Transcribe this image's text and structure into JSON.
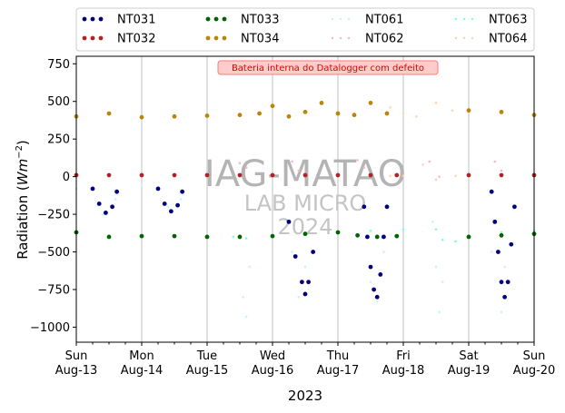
{
  "chart_data": {
    "type": "scatter",
    "xlabel": "2023",
    "ylabel": "Radiation",
    "ylabel_unit_base": "Wm",
    "ylabel_unit_exp": "−2",
    "xlim": [
      0,
      7
    ],
    "ylim": [
      -1100,
      800
    ],
    "grid": "vertical",
    "legend_placement": "top",
    "x_ticks": [
      {
        "x": 0,
        "day": "Sun",
        "date": "Aug-13"
      },
      {
        "x": 1,
        "day": "Mon",
        "date": "Aug-14"
      },
      {
        "x": 2,
        "day": "Tue",
        "date": "Aug-15"
      },
      {
        "x": 3,
        "day": "Wed",
        "date": "Aug-16"
      },
      {
        "x": 4,
        "day": "Thu",
        "date": "Aug-17"
      },
      {
        "x": 5,
        "day": "Fri",
        "date": "Aug-18"
      },
      {
        "x": 6,
        "day": "Sat",
        "date": "Aug-19"
      },
      {
        "x": 7,
        "day": "Sun",
        "date": "Aug-20"
      }
    ],
    "y_ticks": [
      {
        "v": 750,
        "label": "750"
      },
      {
        "v": 500,
        "label": "500"
      },
      {
        "v": 250,
        "label": "250"
      },
      {
        "v": 0,
        "label": "0"
      },
      {
        "v": -250,
        "label": "−250"
      },
      {
        "v": -500,
        "label": "−500"
      },
      {
        "v": -750,
        "label": "−750"
      },
      {
        "v": -1000,
        "label": "−1000"
      }
    ],
    "annotation": "Bateria interna do Datalogger com defeito",
    "watermark": [
      "IAG-MATAO",
      "LAB MICRO",
      "2024"
    ],
    "series": [
      {
        "name": "NT031",
        "color": "#00007f",
        "style": "dot",
        "points": [
          [
            0.25,
            -80
          ],
          [
            0.35,
            -180
          ],
          [
            0.45,
            -240
          ],
          [
            0.55,
            -200
          ],
          [
            0.62,
            -100
          ],
          [
            1.25,
            -80
          ],
          [
            1.35,
            -180
          ],
          [
            1.45,
            -230
          ],
          [
            1.55,
            -190
          ],
          [
            1.62,
            -100
          ],
          [
            3.25,
            -300
          ],
          [
            3.35,
            -530
          ],
          [
            3.45,
            -700
          ],
          [
            3.5,
            -780
          ],
          [
            3.55,
            -700
          ],
          [
            3.62,
            -500
          ],
          [
            4.4,
            -200
          ],
          [
            4.45,
            -400
          ],
          [
            4.5,
            -600
          ],
          [
            4.55,
            -750
          ],
          [
            4.6,
            -800
          ],
          [
            4.65,
            -650
          ],
          [
            4.7,
            -400
          ],
          [
            4.75,
            -200
          ],
          [
            6.35,
            -100
          ],
          [
            6.4,
            -300
          ],
          [
            6.45,
            -500
          ],
          [
            6.5,
            -700
          ],
          [
            6.55,
            -800
          ],
          [
            6.6,
            -700
          ],
          [
            6.65,
            -450
          ],
          [
            6.7,
            -200
          ]
        ]
      },
      {
        "name": "NT032",
        "color": "#b22222",
        "style": "dot",
        "points": [
          [
            0,
            10
          ],
          [
            0.5,
            10
          ],
          [
            1,
            10
          ],
          [
            1.5,
            10
          ],
          [
            2,
            10
          ],
          [
            2.5,
            10
          ],
          [
            3,
            10
          ],
          [
            3.5,
            10
          ],
          [
            4,
            10
          ],
          [
            4.5,
            10
          ],
          [
            4.9,
            10
          ],
          [
            6,
            10
          ],
          [
            6.5,
            10
          ],
          [
            7,
            10
          ]
        ]
      },
      {
        "name": "NT033",
        "color": "#006400",
        "style": "dot",
        "points": [
          [
            0,
            -370
          ],
          [
            0.5,
            -400
          ],
          [
            1,
            -395
          ],
          [
            1.5,
            -395
          ],
          [
            2,
            -400
          ],
          [
            2.5,
            -400
          ],
          [
            3,
            -395
          ],
          [
            3.5,
            -380
          ],
          [
            4,
            -370
          ],
          [
            4.3,
            -390
          ],
          [
            4.6,
            -400
          ],
          [
            4.9,
            -395
          ],
          [
            6,
            -400
          ],
          [
            6.5,
            -390
          ],
          [
            7,
            -380
          ]
        ]
      },
      {
        "name": "NT034",
        "color": "#b8860b",
        "style": "dot",
        "points": [
          [
            0,
            400
          ],
          [
            0.5,
            420
          ],
          [
            1,
            395
          ],
          [
            1.5,
            400
          ],
          [
            2,
            405
          ],
          [
            2.5,
            410
          ],
          [
            2.8,
            420
          ],
          [
            3,
            470
          ],
          [
            3.25,
            400
          ],
          [
            3.5,
            430
          ],
          [
            3.75,
            490
          ],
          [
            4,
            420
          ],
          [
            4.25,
            410
          ],
          [
            4.5,
            490
          ],
          [
            4.75,
            420
          ],
          [
            6,
            440
          ],
          [
            6.5,
            430
          ],
          [
            7,
            410
          ]
        ]
      },
      {
        "name": "NT061",
        "color": "#c4f4ff",
        "style": "dotted",
        "points": [
          [
            0,
            -80
          ],
          [
            0.4,
            -250
          ],
          [
            0.6,
            -150
          ],
          [
            1,
            -60
          ],
          [
            1.4,
            -200
          ],
          [
            1.6,
            -150
          ],
          [
            2.5,
            -400
          ],
          [
            2.55,
            -800
          ],
          [
            2.6,
            -930
          ],
          [
            2.65,
            -600
          ],
          [
            3.3,
            -500
          ],
          [
            3.4,
            -800
          ],
          [
            3.5,
            -600
          ],
          [
            4.5,
            -700
          ],
          [
            4.6,
            -830
          ],
          [
            4.7,
            -500
          ],
          [
            5.45,
            -300
          ],
          [
            5.5,
            -600
          ],
          [
            5.55,
            -900
          ],
          [
            5.6,
            -700
          ],
          [
            6.35,
            -500
          ],
          [
            6.5,
            -900
          ],
          [
            6.55,
            -600
          ]
        ]
      },
      {
        "name": "NT062",
        "color": "#ffb6c1",
        "style": "dotted",
        "points": [
          [
            2.5,
            90
          ],
          [
            2.6,
            60
          ],
          [
            3.3,
            100
          ],
          [
            3.4,
            40
          ],
          [
            4.3,
            110
          ],
          [
            4.4,
            60
          ],
          [
            5.4,
            100
          ],
          [
            5.55,
            0
          ],
          [
            6.4,
            100
          ],
          [
            6.5,
            40
          ]
        ]
      },
      {
        "name": "NT063",
        "color": "#7fffd4",
        "style": "dotted",
        "points": [
          [
            2.4,
            -400
          ],
          [
            2.6,
            -410
          ],
          [
            3,
            -400
          ],
          [
            3.5,
            -380
          ],
          [
            4,
            -370
          ],
          [
            4.5,
            -360
          ],
          [
            5,
            -350
          ],
          [
            5.5,
            -350
          ],
          [
            5.6,
            -420
          ],
          [
            5.8,
            -430
          ],
          [
            6,
            -400
          ],
          [
            6.5,
            -370
          ],
          [
            7,
            -360
          ]
        ]
      },
      {
        "name": "NT064",
        "color": "#ffd3b4",
        "style": "dotted",
        "points": [
          [
            4.8,
            460
          ],
          [
            5,
            420
          ],
          [
            5.2,
            400
          ],
          [
            5.5,
            490
          ],
          [
            5.75,
            440
          ],
          [
            6,
            430
          ],
          [
            6.5,
            420
          ],
          [
            7,
            410
          ],
          [
            4.8,
            5
          ],
          [
            5,
            5
          ],
          [
            5.3,
            80
          ],
          [
            5.5,
            -20
          ],
          [
            5.8,
            5
          ],
          [
            6,
            5
          ]
        ]
      }
    ]
  }
}
